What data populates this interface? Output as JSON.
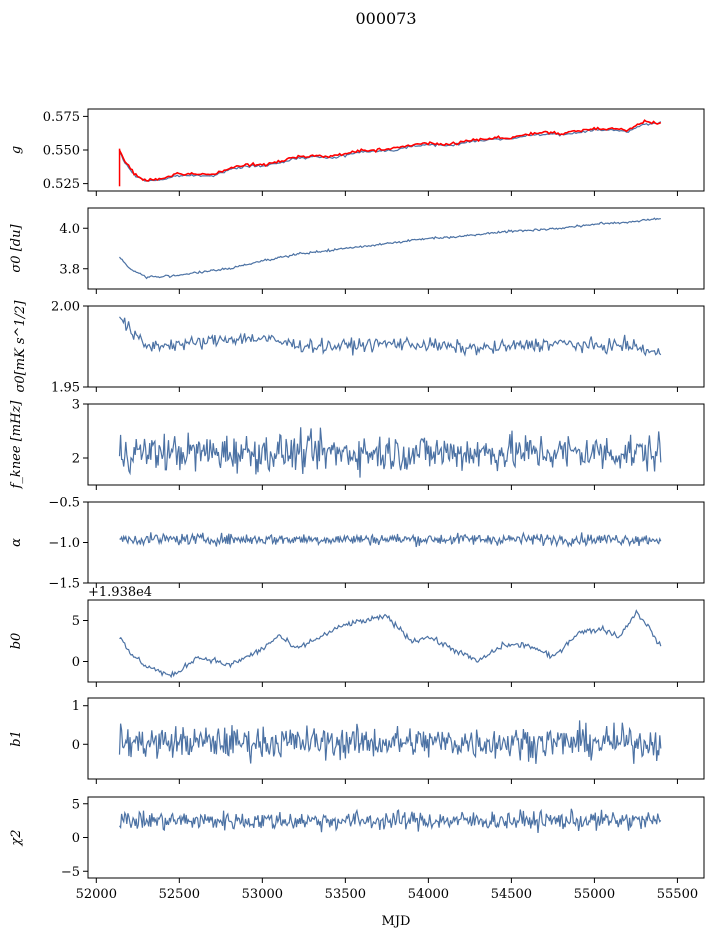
{
  "figure_title": "000073",
  "x_axis_label": "MJD",
  "colors": {
    "series": "#4c72a4",
    "overlay": "#ff0000",
    "axes": "#000000"
  },
  "chart_data": [
    {
      "type": "line",
      "ylabel": "g",
      "xlim": [
        51950,
        55660
      ],
      "ylim": [
        0.5195,
        0.5805
      ],
      "y_ticks": [
        0.525,
        0.55,
        0.575
      ],
      "y_tick_labels": [
        "0.525",
        "0.550",
        "0.575"
      ],
      "series": [
        {
          "values_desc": "smooth",
          "x": [
            52140,
            52170,
            52230,
            52300,
            52400,
            52500,
            52600,
            52700,
            52800,
            52900,
            53000,
            53100,
            53200,
            53300,
            53400,
            53500,
            53600,
            53700,
            53800,
            53900,
            54000,
            54100,
            54200,
            54300,
            54400,
            54500,
            54600,
            54700,
            54800,
            54900,
            55000,
            55100,
            55200,
            55300,
            55400
          ],
          "y": [
            0.548,
            0.541,
            0.531,
            0.527,
            0.528,
            0.531,
            0.531,
            0.531,
            0.535,
            0.538,
            0.538,
            0.54,
            0.544,
            0.545,
            0.544,
            0.546,
            0.549,
            0.549,
            0.55,
            0.553,
            0.554,
            0.553,
            0.555,
            0.557,
            0.558,
            0.558,
            0.561,
            0.562,
            0.561,
            0.563,
            0.565,
            0.565,
            0.564,
            0.569,
            0.57
          ]
        },
        {
          "values_desc": "overlay",
          "x": [
            52140,
            52170,
            52230,
            52300,
            52400,
            52500,
            52600,
            52700,
            52800,
            52900,
            53000,
            53100,
            53200,
            53300,
            53400,
            53500,
            53600,
            53700,
            53800,
            53900,
            54000,
            54100,
            54200,
            54300,
            54400,
            54500,
            54600,
            54700,
            54800,
            54900,
            55000,
            55100,
            55200,
            55300,
            55400
          ],
          "y": [
            0.55,
            0.542,
            0.532,
            0.527,
            0.529,
            0.532,
            0.532,
            0.532,
            0.536,
            0.539,
            0.539,
            0.541,
            0.545,
            0.546,
            0.545,
            0.547,
            0.55,
            0.55,
            0.551,
            0.554,
            0.555,
            0.554,
            0.556,
            0.558,
            0.559,
            0.559,
            0.562,
            0.563,
            0.562,
            0.564,
            0.566,
            0.566,
            0.565,
            0.571,
            0.57
          ]
        }
      ]
    },
    {
      "type": "line",
      "ylabel": "σ0 [du]",
      "xlim": [
        51950,
        55660
      ],
      "ylim": [
        3.7,
        4.1
      ],
      "y_ticks": [
        3.8,
        4.0
      ],
      "y_tick_labels": [
        "3.8",
        "4.0"
      ],
      "series": [
        {
          "x": [
            52140,
            52200,
            52300,
            52400,
            52500,
            52600,
            52800,
            53000,
            53200,
            53400,
            53600,
            53800,
            54000,
            54200,
            54400,
            54600,
            54800,
            55000,
            55200,
            55400
          ],
          "y": [
            3.86,
            3.8,
            3.76,
            3.76,
            3.77,
            3.78,
            3.8,
            3.84,
            3.87,
            3.89,
            3.91,
            3.93,
            3.95,
            3.96,
            3.98,
            3.99,
            4.0,
            4.02,
            4.03,
            4.05
          ]
        }
      ]
    },
    {
      "type": "line",
      "ylabel": "σ0[mK s^1/2]",
      "xlim": [
        51950,
        55660
      ],
      "ylim": [
        1.95,
        2.0
      ],
      "y_ticks": [
        1.95,
        2.0
      ],
      "y_tick_labels": [
        "1.95",
        "2.00"
      ],
      "series": [
        {
          "x": [
            52140,
            52200,
            52300,
            52400,
            52600,
            52800,
            53000,
            53200,
            53400,
            53600,
            53800,
            54000,
            54200,
            54400,
            54600,
            54800,
            55000,
            55200,
            55400
          ],
          "y": [
            1.994,
            1.985,
            1.975,
            1.976,
            1.977,
            1.98,
            1.98,
            1.976,
            1.975,
            1.976,
            1.977,
            1.976,
            1.974,
            1.974,
            1.976,
            1.977,
            1.975,
            1.976,
            1.97
          ]
        }
      ]
    },
    {
      "type": "line",
      "ylabel": "f_knee [mHz]",
      "xlim": [
        51950,
        55660
      ],
      "ylim": [
        1.5,
        3.0
      ],
      "y_ticks": [
        2,
        3
      ],
      "y_tick_labels": [
        "2",
        "3"
      ],
      "series": [
        {
          "x": [
            52140,
            55400
          ],
          "y": [
            2.1,
            2.1
          ]
        }
      ]
    },
    {
      "type": "line",
      "ylabel": "α",
      "xlim": [
        51950,
        55660
      ],
      "ylim": [
        -1.5,
        -0.5
      ],
      "y_ticks": [
        -1.5,
        -1.0,
        -0.5
      ],
      "y_tick_labels": [
        "−1.5",
        "−1.0",
        "−0.5"
      ],
      "series": [
        {
          "x": [
            52140,
            55400
          ],
          "y": [
            -0.96,
            -0.96
          ]
        }
      ]
    },
    {
      "type": "line",
      "ylabel": "b0",
      "offset_text": "+1.938e4",
      "xlim": [
        51950,
        55660
      ],
      "ylim": [
        -2.5,
        7.5
      ],
      "y_ticks": [
        0,
        5
      ],
      "y_tick_labels": [
        "0",
        "5"
      ],
      "series": [
        {
          "x": [
            52140,
            52200,
            52300,
            52450,
            52500,
            52600,
            52700,
            52800,
            53000,
            53100,
            53200,
            53350,
            53500,
            53750,
            53900,
            54000,
            54150,
            54300,
            54450,
            54600,
            54750,
            54900,
            55050,
            55150,
            55250,
            55300,
            55400
          ],
          "y": [
            3.0,
            1.0,
            -0.5,
            -1.8,
            -1.2,
            0.5,
            0.2,
            -0.5,
            1.5,
            3.2,
            1.5,
            3.0,
            4.5,
            5.5,
            2.5,
            3.0,
            1.5,
            0.0,
            2.0,
            2.0,
            0.5,
            3.5,
            4.0,
            3.0,
            6.0,
            5.0,
            1.8
          ]
        }
      ]
    },
    {
      "type": "line",
      "ylabel": "b1",
      "xlim": [
        51950,
        55660
      ],
      "ylim": [
        -0.9,
        1.2
      ],
      "y_ticks": [
        0,
        1
      ],
      "y_tick_labels": [
        "0",
        "1"
      ],
      "series": [
        {
          "x": [
            52140,
            55400
          ],
          "y": [
            0.05,
            0.05
          ]
        }
      ]
    },
    {
      "type": "line",
      "ylabel": "χ2",
      "xlabel": "MJD",
      "xlim": [
        51950,
        55660
      ],
      "ylim": [
        -6.0,
        6.0
      ],
      "y_ticks": [
        -5,
        0,
        5
      ],
      "y_tick_labels": [
        "−5",
        "0",
        "5"
      ],
      "x_ticks": [
        52000,
        52500,
        53000,
        53500,
        54000,
        54500,
        55000,
        55500
      ],
      "x_tick_labels": [
        "52000",
        "52500",
        "53000",
        "53500",
        "54000",
        "54500",
        "55000",
        "55500"
      ],
      "series": [
        {
          "x": [
            52140,
            55400
          ],
          "y": [
            2.5,
            2.5
          ]
        }
      ]
    }
  ]
}
